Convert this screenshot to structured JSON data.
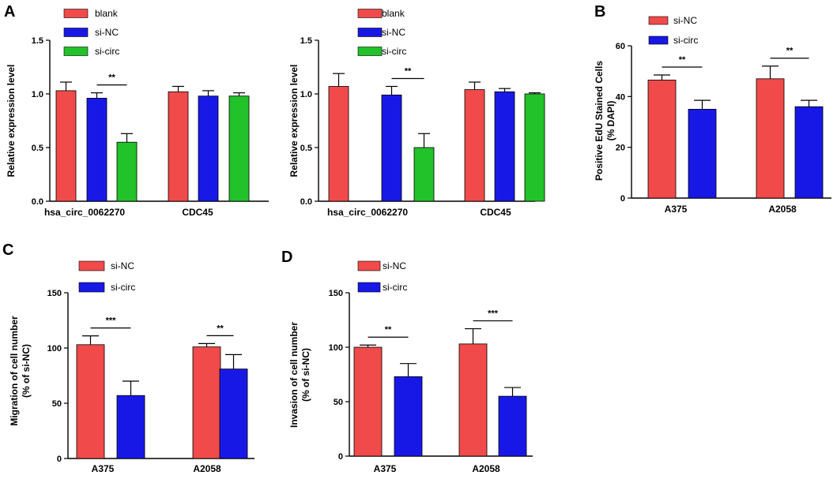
{
  "colors": {
    "blank": "#f04a4a",
    "si-NC": "#1818e6",
    "si-circ": "#22c22a",
    "si-NC-red": "#f04a4a",
    "si-circ-blue": "#1818e6"
  },
  "chart_data": [
    {
      "panel": "A",
      "type": "bar",
      "ylabel": "Relative expression level",
      "ylim": [
        0,
        1.5
      ],
      "yticks": [
        "0.0",
        "0.5",
        "1.0",
        "1.5"
      ],
      "categories": [
        "hsa_circ_0062270",
        "CDC45"
      ],
      "series": [
        {
          "name": "blank",
          "color": "#f04a4a",
          "values": [
            1.03,
            1.02
          ],
          "errors": [
            0.08,
            0.05
          ]
        },
        {
          "name": "si-NC",
          "color": "#1818e6",
          "values": [
            0.96,
            0.98
          ],
          "errors": [
            0.05,
            0.05
          ]
        },
        {
          "name": "si-circ",
          "color": "#22c22a",
          "values": [
            0.55,
            0.98
          ],
          "errors": [
            0.08,
            0.03
          ]
        }
      ],
      "significance": [
        {
          "label": "**",
          "category": 0,
          "from": 1,
          "to": 2
        }
      ]
    },
    {
      "panel": "",
      "type": "bar",
      "ylabel": "Relative expression level",
      "ylim": [
        0,
        1.5
      ],
      "yticks": [
        "0.0",
        "0.5",
        "1.0",
        "1.5"
      ],
      "categories": [
        "hsa_circ_0062270",
        "CDC45"
      ],
      "series": [
        {
          "name": "blank",
          "color": "#f04a4a",
          "values": [
            1.07,
            1.04
          ],
          "errors": [
            0.12,
            0.07
          ]
        },
        {
          "name": "si-NC",
          "color": "#1818e6",
          "values": [
            0.99,
            1.02
          ],
          "errors": [
            0.08,
            0.03
          ]
        },
        {
          "name": "si-circ",
          "color": "#22c22a",
          "values": [
            0.5,
            1.0
          ],
          "errors": [
            0.13,
            0.01
          ]
        }
      ],
      "significance": [
        {
          "label": "**",
          "category": 0,
          "from": 1,
          "to": 2
        }
      ]
    },
    {
      "panel": "B",
      "type": "bar",
      "ylabel": "Positive EdU Stained Cells",
      "ylabel2": "(% DAPI)",
      "ylim": [
        0,
        60
      ],
      "yticks": [
        "0",
        "20",
        "40",
        "60"
      ],
      "categories": [
        "A375",
        "A2058"
      ],
      "series": [
        {
          "name": "si-NC",
          "color": "#f04a4a",
          "values": [
            46.5,
            47
          ],
          "errors": [
            2,
            5
          ]
        },
        {
          "name": "si-circ",
          "color": "#1818e6",
          "values": [
            35,
            36
          ],
          "errors": [
            3.5,
            2.5
          ]
        }
      ],
      "significance": [
        {
          "label": "**",
          "category": 0,
          "from": 0,
          "to": 1
        },
        {
          "label": "**",
          "category": 1,
          "from": 0,
          "to": 1
        }
      ]
    },
    {
      "panel": "C",
      "type": "bar",
      "ylabel": "Migration of cell number",
      "ylabel2": "(% of si-NC)",
      "ylim": [
        0,
        150
      ],
      "yticks": [
        "0",
        "50",
        "100",
        "150"
      ],
      "categories": [
        "A375",
        "A2058"
      ],
      "series": [
        {
          "name": "si-NC",
          "color": "#f04a4a",
          "values": [
            103,
            101
          ],
          "errors": [
            8,
            3
          ]
        },
        {
          "name": "si-circ",
          "color": "#1818e6",
          "values": [
            57,
            81
          ],
          "errors": [
            13,
            13
          ]
        }
      ],
      "significance": [
        {
          "label": "***",
          "category": 0,
          "from": 0,
          "to": 1
        },
        {
          "label": "**",
          "category": 1,
          "from": 0,
          "to": 1
        }
      ]
    },
    {
      "panel": "D",
      "type": "bar",
      "ylabel": "Invasion of cell number",
      "ylabel2": "(% of si-NC)",
      "ylim": [
        0,
        150
      ],
      "yticks": [
        "0",
        "50",
        "100",
        "150"
      ],
      "categories": [
        "A375",
        "A2058"
      ],
      "series": [
        {
          "name": "si-NC",
          "color": "#f04a4a",
          "values": [
            100,
            103
          ],
          "errors": [
            2,
            14
          ]
        },
        {
          "name": "si-circ",
          "color": "#1818e6",
          "values": [
            73,
            55
          ],
          "errors": [
            12,
            8
          ]
        }
      ],
      "significance": [
        {
          "label": "**",
          "category": 0,
          "from": 0,
          "to": 1
        },
        {
          "label": "***",
          "category": 1,
          "from": 0,
          "to": 1
        }
      ]
    }
  ]
}
